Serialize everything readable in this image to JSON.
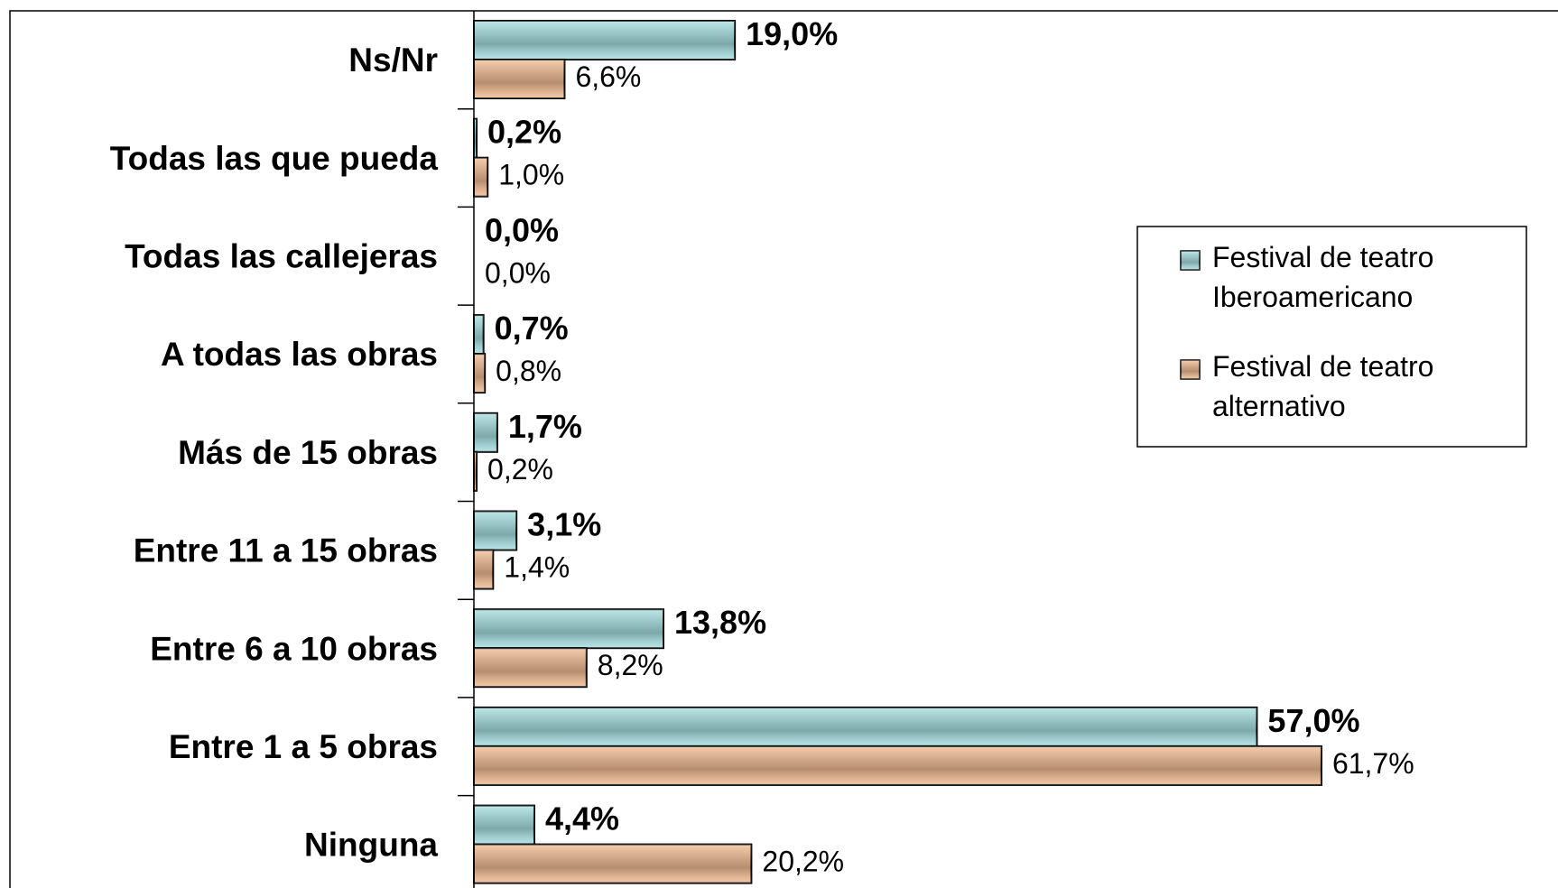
{
  "chart_data": {
    "type": "bar",
    "orientation": "horizontal",
    "categories": [
      "Ns/Nr",
      "Todas las que pueda",
      "Todas las callejeras",
      "A todas las obras",
      "Más de 15 obras",
      "Entre 11 a 15 obras",
      "Entre 6 a 10 obras",
      "Entre 1 a 5 obras",
      "Ninguna"
    ],
    "series": [
      {
        "name": "Festival de teatro Iberoamericano",
        "color": "#a6e0e2",
        "values": [
          19.0,
          0.2,
          0.0,
          0.7,
          1.7,
          3.1,
          13.8,
          57.0,
          4.4
        ],
        "value_labels": [
          "19,0%",
          "0,2%",
          "0,0%",
          "0,7%",
          "1,7%",
          "3,1%",
          "13,8%",
          "57,0%",
          "4,4%"
        ]
      },
      {
        "name": "Festival de teatro alternativo",
        "color": "#f2bc92",
        "values": [
          6.6,
          1.0,
          0.0,
          0.8,
          0.2,
          1.4,
          8.2,
          61.7,
          20.2
        ],
        "value_labels": [
          "6,6%",
          "1,0%",
          "0,0%",
          "0,8%",
          "0,2%",
          "1,4%",
          "8,2%",
          "61,7%",
          "20,2%"
        ]
      }
    ],
    "xlim": [
      0,
      78
    ],
    "legend": "right"
  }
}
